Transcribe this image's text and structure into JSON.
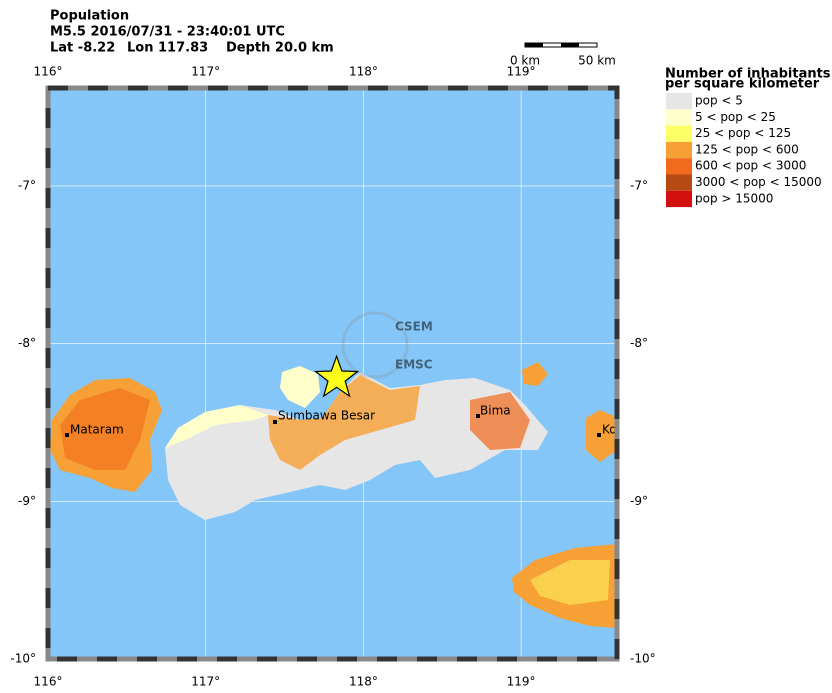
{
  "header": {
    "title": "Population",
    "event": "M5.5  2016/07/31 - 23:40:01 UTC",
    "location": {
      "lat": {
        "value": -8.22,
        "label": "Lat -8.22"
      },
      "lon": {
        "value": 117.83,
        "label": "Lon 117.83"
      },
      "depth": "Depth  20.0 km"
    }
  },
  "scale_bar": {
    "start": "0 km",
    "end": "50 km"
  },
  "map": {
    "lon_ticks": [
      {
        "value": 116,
        "label": "116°"
      },
      {
        "value": 117,
        "label": "117°"
      },
      {
        "value": 118,
        "label": "118°"
      },
      {
        "value": 119,
        "label": "119°"
      }
    ],
    "lat_ticks": [
      {
        "value": -7,
        "label": "-7°"
      },
      {
        "value": -8,
        "label": "-8°"
      },
      {
        "value": -9,
        "label": "-9°"
      },
      {
        "value": -10,
        "label": "-10°"
      }
    ],
    "cities": [
      "Mataram",
      "Sumbawa Besar",
      "Bima",
      "Ko"
    ],
    "watermark": [
      "CSEM",
      "EMSC"
    ]
  },
  "legend": {
    "title": [
      "Number of inhabitants",
      "per square kilometer"
    ],
    "items": [
      {
        "label": "pop < 5",
        "color": "#e6e6e6"
      },
      {
        "label": "5 < pop < 25",
        "color": "#ffffcc"
      },
      {
        "label": "25 < pop < 125",
        "color": "#ffff66"
      },
      {
        "label": "125 < pop < 600",
        "color": "#f7a035"
      },
      {
        "label": "600 < pop < 3000",
        "color": "#f26a1b"
      },
      {
        "label": "3000 < pop < 15000",
        "color": "#b54a14"
      },
      {
        "label": "pop > 15000",
        "color": "#d40f0f"
      }
    ]
  }
}
